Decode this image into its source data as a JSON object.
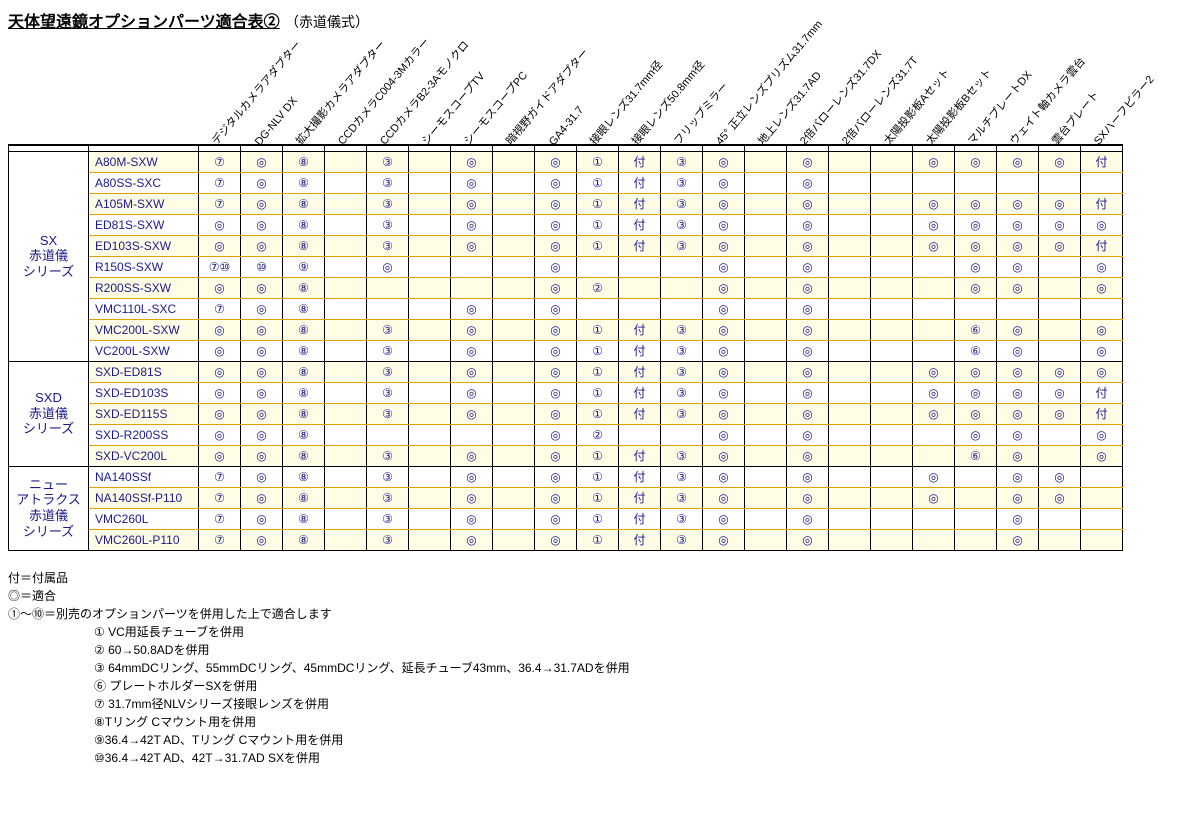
{
  "title": "天体望遠鏡オプションパーツ適合表②",
  "subtitle": "（赤道儀式）",
  "columns": [
    "デジタルカメラアダプター",
    "DG-NLV DX",
    "拡大撮影カメラアダプター",
    "CCDカメラC004-3Mカラー",
    "CCDカメラB2-3Aモノクロ",
    "シーモスコープTV",
    "シーモスコープPC",
    "暗視野ガイドアダプター",
    "GA4-31.7",
    "接眼レンズ31.7mm径",
    "接眼レンズ50.8mm径",
    "フリップミラー",
    "45° 正立レンズプリズム31.7mm",
    "地上レンズ31.7AD",
    "2倍バローレンズ31.7DX",
    "2倍バローレンズ31.7T",
    "太陽投影板Aセット",
    "太陽投影板Bセット",
    "マルチプレートDX",
    "ウェイト軸カメラ雲台",
    "雲台プレート",
    "SXハーフピラー2"
  ],
  "groups": [
    {
      "label": "SX\n赤道儀\nシリーズ",
      "rows": [
        {
          "model": "A80M-SXW",
          "cells": [
            "⑦",
            "◎",
            "⑧",
            "",
            "③",
            "",
            "◎",
            "",
            "◎",
            "①",
            "付",
            "③",
            "◎",
            "",
            "◎",
            "",
            "",
            "◎",
            "◎",
            "◎",
            "◎",
            "付"
          ]
        },
        {
          "model": "A80SS-SXC",
          "cells": [
            "⑦",
            "◎",
            "⑧",
            "",
            "③",
            "",
            "◎",
            "",
            "◎",
            "①",
            "付",
            "③",
            "◎",
            "",
            "◎",
            "",
            "",
            "",
            "",
            "",
            "",
            ""
          ]
        },
        {
          "model": "A105M-SXW",
          "cells": [
            "⑦",
            "◎",
            "⑧",
            "",
            "③",
            "",
            "◎",
            "",
            "◎",
            "①",
            "付",
            "③",
            "◎",
            "",
            "◎",
            "",
            "",
            "◎",
            "◎",
            "◎",
            "◎",
            "付"
          ]
        },
        {
          "model": "ED81S-SXW",
          "cells": [
            "◎",
            "◎",
            "⑧",
            "",
            "③",
            "",
            "◎",
            "",
            "◎",
            "①",
            "付",
            "③",
            "◎",
            "",
            "◎",
            "",
            "",
            "◎",
            "◎",
            "◎",
            "◎",
            "◎"
          ]
        },
        {
          "model": "ED103S-SXW",
          "cells": [
            "◎",
            "◎",
            "⑧",
            "",
            "③",
            "",
            "◎",
            "",
            "◎",
            "①",
            "付",
            "③",
            "◎",
            "",
            "◎",
            "",
            "",
            "◎",
            "◎",
            "◎",
            "◎",
            "付"
          ]
        },
        {
          "model": "R150S-SXW",
          "cells": [
            "⑦⑩",
            "⑩",
            "⑨",
            "",
            "◎",
            "",
            "",
            "",
            "◎",
            "",
            "",
            "",
            "◎",
            "",
            "◎",
            "",
            "",
            "",
            "◎",
            "◎",
            "",
            "◎"
          ]
        },
        {
          "model": "R200SS-SXW",
          "cells": [
            "◎",
            "◎",
            "⑧",
            "",
            "",
            "",
            "",
            "",
            "◎",
            "②",
            "",
            "",
            "◎",
            "",
            "◎",
            "",
            "",
            "",
            "◎",
            "◎",
            "",
            "◎"
          ]
        },
        {
          "model": "VMC110L-SXC",
          "cells": [
            "⑦",
            "◎",
            "⑧",
            "",
            "",
            "",
            "◎",
            "",
            "◎",
            "",
            "",
            "",
            "◎",
            "",
            "◎",
            "",
            "",
            "",
            "",
            "",
            "",
            ""
          ]
        },
        {
          "model": "VMC200L-SXW",
          "cells": [
            "◎",
            "◎",
            "⑧",
            "",
            "③",
            "",
            "◎",
            "",
            "◎",
            "①",
            "付",
            "③",
            "◎",
            "",
            "◎",
            "",
            "",
            "",
            "⑥",
            "◎",
            "",
            "◎"
          ]
        },
        {
          "model": "VC200L-SXW",
          "cells": [
            "◎",
            "◎",
            "⑧",
            "",
            "③",
            "",
            "◎",
            "",
            "◎",
            "①",
            "付",
            "③",
            "◎",
            "",
            "◎",
            "",
            "",
            "",
            "⑥",
            "◎",
            "",
            "◎"
          ]
        }
      ]
    },
    {
      "label": "SXD\n赤道儀\nシリーズ",
      "rows": [
        {
          "model": "SXD-ED81S",
          "cells": [
            "◎",
            "◎",
            "⑧",
            "",
            "③",
            "",
            "◎",
            "",
            "◎",
            "①",
            "付",
            "③",
            "◎",
            "",
            "◎",
            "",
            "",
            "◎",
            "◎",
            "◎",
            "◎",
            "◎"
          ]
        },
        {
          "model": "SXD-ED103S",
          "cells": [
            "◎",
            "◎",
            "⑧",
            "",
            "③",
            "",
            "◎",
            "",
            "◎",
            "①",
            "付",
            "③",
            "◎",
            "",
            "◎",
            "",
            "",
            "◎",
            "◎",
            "◎",
            "◎",
            "付"
          ]
        },
        {
          "model": "SXD-ED115S",
          "cells": [
            "◎",
            "◎",
            "⑧",
            "",
            "③",
            "",
            "◎",
            "",
            "◎",
            "①",
            "付",
            "③",
            "◎",
            "",
            "◎",
            "",
            "",
            "◎",
            "◎",
            "◎",
            "◎",
            "付"
          ]
        },
        {
          "model": "SXD-R200SS",
          "cells": [
            "◎",
            "◎",
            "⑧",
            "",
            "",
            "",
            "",
            "",
            "◎",
            "②",
            "",
            "",
            "◎",
            "",
            "◎",
            "",
            "",
            "",
            "◎",
            "◎",
            "",
            "◎"
          ]
        },
        {
          "model": "SXD-VC200L",
          "cells": [
            "◎",
            "◎",
            "⑧",
            "",
            "③",
            "",
            "◎",
            "",
            "◎",
            "①",
            "付",
            "③",
            "◎",
            "",
            "◎",
            "",
            "",
            "",
            "⑥",
            "◎",
            "",
            "◎"
          ]
        }
      ]
    },
    {
      "label": "ニュー\nアトラクス\n赤道儀\nシリーズ",
      "rows": [
        {
          "model": "NA140SSf",
          "cells": [
            "⑦",
            "◎",
            "⑧",
            "",
            "③",
            "",
            "◎",
            "",
            "◎",
            "①",
            "付",
            "③",
            "◎",
            "",
            "◎",
            "",
            "",
            "◎",
            "",
            "◎",
            "◎",
            ""
          ]
        },
        {
          "model": "NA140SSf-P110",
          "cells": [
            "⑦",
            "◎",
            "⑧",
            "",
            "③",
            "",
            "◎",
            "",
            "◎",
            "①",
            "付",
            "③",
            "◎",
            "",
            "◎",
            "",
            "",
            "◎",
            "",
            "◎",
            "◎",
            ""
          ]
        },
        {
          "model": "VMC260L",
          "cells": [
            "⑦",
            "◎",
            "⑧",
            "",
            "③",
            "",
            "◎",
            "",
            "◎",
            "①",
            "付",
            "③",
            "◎",
            "",
            "◎",
            "",
            "",
            "",
            "",
            "◎",
            "",
            ""
          ]
        },
        {
          "model": "VMC260L-P110",
          "cells": [
            "⑦",
            "◎",
            "⑧",
            "",
            "③",
            "",
            "◎",
            "",
            "◎",
            "①",
            "付",
            "③",
            "◎",
            "",
            "◎",
            "",
            "",
            "",
            "",
            "◎",
            "",
            ""
          ]
        }
      ]
    }
  ],
  "legend": {
    "lines": [
      "付＝付属品",
      "◎＝適合",
      "①～⑩＝別売のオプションパーツを併用した上で適合します"
    ],
    "notes": [
      "① VC用延長チューブを併用",
      "② 60→50.8ADを併用",
      "③ 64mmDCリング、55mmDCリング、45mmDCリング、延長チューブ43mm、36.4→31.7ADを併用",
      "⑥ プレートホルダーSXを併用",
      "⑦ 31.7mm径NLVシリーズ接眼レンズを併用",
      "⑧Tリング Cマウント用を併用",
      "⑨36.4→42T AD、Tリング Cマウント用を併用",
      "⑩36.4→42T AD、42T→31.7AD SXを併用"
    ]
  },
  "colors": {
    "row_even_bg": "#fffde5",
    "row_odd_bg": "#ffffff",
    "text_link": "#1a1a8a",
    "row_divider": "#e2a100"
  }
}
